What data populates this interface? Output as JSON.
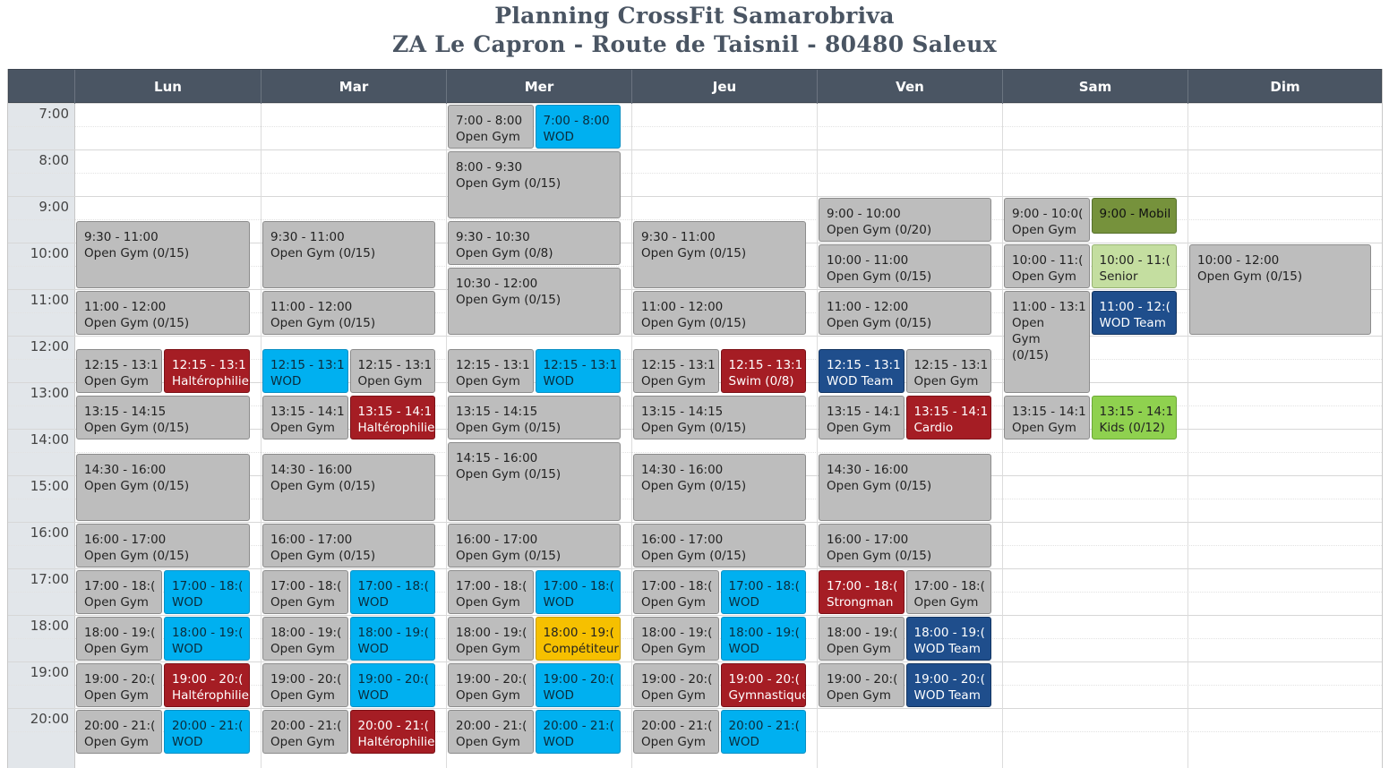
{
  "title": {
    "line1": "Planning CrossFit Samarobriva",
    "line2": "ZA Le Capron - Route de Taisnil - 80480 Saleux"
  },
  "days": [
    "Lun",
    "Mar",
    "Mer",
    "Jeu",
    "Ven",
    "Sam",
    "Dim"
  ],
  "hours": [
    "7:00",
    "8:00",
    "9:00",
    "10:00",
    "11:00",
    "12:00",
    "13:00",
    "14:00",
    "15:00",
    "16:00",
    "17:00",
    "18:00",
    "19:00",
    "20:00"
  ],
  "colors": {
    "header": "#4a5563",
    "grey": "#bdbdbd",
    "blue": "#00b0f0",
    "red": "#a51d24",
    "navy": "#1f4e8c",
    "yellow": "#f6c000",
    "olive": "#76923c",
    "light_green": "#c4dea0",
    "green": "#8fd14f"
  },
  "events": [
    {
      "day": 0,
      "start": "9:30",
      "end": "11:00",
      "time": "9:30 - 11:00",
      "name": "Open Gym (0/15)",
      "color": "grey",
      "col": 0,
      "cols": 1
    },
    {
      "day": 0,
      "start": "11:00",
      "end": "12:00",
      "time": "11:00 - 12:00",
      "name": "Open Gym (0/15)",
      "color": "grey",
      "col": 0,
      "cols": 1
    },
    {
      "day": 0,
      "start": "12:15",
      "end": "13:15",
      "time": "12:15 - 13:1",
      "name": "Open Gym",
      "color": "grey",
      "col": 0,
      "cols": 2
    },
    {
      "day": 0,
      "start": "12:15",
      "end": "13:15",
      "time": "12:15 - 13:1",
      "name": "Haltérophilie",
      "color": "red",
      "col": 1,
      "cols": 2
    },
    {
      "day": 0,
      "start": "13:15",
      "end": "14:15",
      "time": "13:15 - 14:15",
      "name": "Open Gym (0/15)",
      "color": "grey",
      "col": 0,
      "cols": 1
    },
    {
      "day": 0,
      "start": "14:30",
      "end": "16:00",
      "time": "14:30 - 16:00",
      "name": "Open Gym (0/15)",
      "color": "grey",
      "col": 0,
      "cols": 1
    },
    {
      "day": 0,
      "start": "16:00",
      "end": "17:00",
      "time": "16:00 - 17:00",
      "name": "Open Gym (0/15)",
      "color": "grey",
      "col": 0,
      "cols": 1
    },
    {
      "day": 0,
      "start": "17:00",
      "end": "18:00",
      "time": "17:00 - 18:(",
      "name": "Open Gym",
      "color": "grey",
      "col": 0,
      "cols": 2
    },
    {
      "day": 0,
      "start": "17:00",
      "end": "18:00",
      "time": "17:00 - 18:(",
      "name": "WOD",
      "color": "blue",
      "col": 1,
      "cols": 2
    },
    {
      "day": 0,
      "start": "18:00",
      "end": "19:00",
      "time": "18:00 - 19:(",
      "name": "Open Gym",
      "color": "grey",
      "col": 0,
      "cols": 2
    },
    {
      "day": 0,
      "start": "18:00",
      "end": "19:00",
      "time": "18:00 - 19:(",
      "name": "WOD",
      "color": "blue",
      "col": 1,
      "cols": 2
    },
    {
      "day": 0,
      "start": "19:00",
      "end": "20:00",
      "time": "19:00 - 20:(",
      "name": "Open Gym",
      "color": "grey",
      "col": 0,
      "cols": 2
    },
    {
      "day": 0,
      "start": "19:00",
      "end": "20:00",
      "time": "19:00 - 20:(",
      "name": "Haltérophilie",
      "color": "red",
      "col": 1,
      "cols": 2
    },
    {
      "day": 0,
      "start": "20:00",
      "end": "21:00",
      "time": "20:00 - 21:(",
      "name": "Open Gym",
      "color": "grey",
      "col": 0,
      "cols": 2
    },
    {
      "day": 0,
      "start": "20:00",
      "end": "21:00",
      "time": "20:00 - 21:(",
      "name": "WOD",
      "color": "blue",
      "col": 1,
      "cols": 2
    },
    {
      "day": 1,
      "start": "9:30",
      "end": "11:00",
      "time": "9:30 - 11:00",
      "name": "Open Gym (0/15)",
      "color": "grey",
      "col": 0,
      "cols": 1
    },
    {
      "day": 1,
      "start": "11:00",
      "end": "12:00",
      "time": "11:00 - 12:00",
      "name": "Open Gym (0/15)",
      "color": "grey",
      "col": 0,
      "cols": 1
    },
    {
      "day": 1,
      "start": "12:15",
      "end": "13:15",
      "time": "12:15 - 13:1",
      "name": "WOD",
      "color": "blue",
      "col": 0,
      "cols": 2
    },
    {
      "day": 1,
      "start": "12:15",
      "end": "13:15",
      "time": "12:15 - 13:1",
      "name": "Open Gym",
      "color": "grey",
      "col": 1,
      "cols": 2
    },
    {
      "day": 1,
      "start": "13:15",
      "end": "14:15",
      "time": "13:15 - 14:1",
      "name": "Open Gym",
      "color": "grey",
      "col": 0,
      "cols": 2
    },
    {
      "day": 1,
      "start": "13:15",
      "end": "14:15",
      "time": "13:15 - 14:1",
      "name": "Haltérophilie",
      "color": "red",
      "col": 1,
      "cols": 2
    },
    {
      "day": 1,
      "start": "14:30",
      "end": "16:00",
      "time": "14:30 - 16:00",
      "name": "Open Gym (0/15)",
      "color": "grey",
      "col": 0,
      "cols": 1
    },
    {
      "day": 1,
      "start": "16:00",
      "end": "17:00",
      "time": "16:00 - 17:00",
      "name": "Open Gym (0/15)",
      "color": "grey",
      "col": 0,
      "cols": 1
    },
    {
      "day": 1,
      "start": "17:00",
      "end": "18:00",
      "time": "17:00 - 18:(",
      "name": "Open Gym",
      "color": "grey",
      "col": 0,
      "cols": 2
    },
    {
      "day": 1,
      "start": "17:00",
      "end": "18:00",
      "time": "17:00 - 18:(",
      "name": "WOD",
      "color": "blue",
      "col": 1,
      "cols": 2
    },
    {
      "day": 1,
      "start": "18:00",
      "end": "19:00",
      "time": "18:00 - 19:(",
      "name": "Open Gym",
      "color": "grey",
      "col": 0,
      "cols": 2
    },
    {
      "day": 1,
      "start": "18:00",
      "end": "19:00",
      "time": "18:00 - 19:(",
      "name": "WOD",
      "color": "blue",
      "col": 1,
      "cols": 2
    },
    {
      "day": 1,
      "start": "19:00",
      "end": "20:00",
      "time": "19:00 - 20:(",
      "name": "Open Gym",
      "color": "grey",
      "col": 0,
      "cols": 2
    },
    {
      "day": 1,
      "start": "19:00",
      "end": "20:00",
      "time": "19:00 - 20:(",
      "name": "WOD",
      "color": "blue",
      "col": 1,
      "cols": 2
    },
    {
      "day": 1,
      "start": "20:00",
      "end": "21:00",
      "time": "20:00 - 21:(",
      "name": "Open Gym",
      "color": "grey",
      "col": 0,
      "cols": 2
    },
    {
      "day": 1,
      "start": "20:00",
      "end": "21:00",
      "time": "20:00 - 21:(",
      "name": "Haltérophilie",
      "color": "red",
      "col": 1,
      "cols": 2
    },
    {
      "day": 2,
      "start": "7:00",
      "end": "8:00",
      "time": "7:00 - 8:00",
      "name": "Open Gym",
      "color": "grey",
      "col": 0,
      "cols": 2
    },
    {
      "day": 2,
      "start": "7:00",
      "end": "8:00",
      "time": "7:00 - 8:00",
      "name": "WOD",
      "color": "blue",
      "col": 1,
      "cols": 2
    },
    {
      "day": 2,
      "start": "8:00",
      "end": "9:30",
      "time": "8:00 - 9:30",
      "name": "Open Gym (0/15)",
      "color": "grey",
      "col": 0,
      "cols": 1
    },
    {
      "day": 2,
      "start": "9:30",
      "end": "10:30",
      "time": "9:30 - 10:30",
      "name": "Open Gym (0/8)",
      "color": "grey",
      "col": 0,
      "cols": 1
    },
    {
      "day": 2,
      "start": "10:30",
      "end": "12:00",
      "time": "10:30 - 12:00",
      "name": "Open Gym (0/15)",
      "color": "grey",
      "col": 0,
      "cols": 1
    },
    {
      "day": 2,
      "start": "12:15",
      "end": "13:15",
      "time": "12:15 - 13:1",
      "name": "Open Gym",
      "color": "grey",
      "col": 0,
      "cols": 2
    },
    {
      "day": 2,
      "start": "12:15",
      "end": "13:15",
      "time": "12:15 - 13:1",
      "name": "WOD",
      "color": "blue",
      "col": 1,
      "cols": 2
    },
    {
      "day": 2,
      "start": "13:15",
      "end": "14:15",
      "time": "13:15 - 14:15",
      "name": "Open Gym (0/15)",
      "color": "grey",
      "col": 0,
      "cols": 1
    },
    {
      "day": 2,
      "start": "14:15",
      "end": "16:00",
      "time": "14:15 - 16:00",
      "name": "Open Gym (0/15)",
      "color": "grey",
      "col": 0,
      "cols": 1
    },
    {
      "day": 2,
      "start": "16:00",
      "end": "17:00",
      "time": "16:00 - 17:00",
      "name": "Open Gym (0/15)",
      "color": "grey",
      "col": 0,
      "cols": 1
    },
    {
      "day": 2,
      "start": "17:00",
      "end": "18:00",
      "time": "17:00 - 18:(",
      "name": "Open Gym",
      "color": "grey",
      "col": 0,
      "cols": 2
    },
    {
      "day": 2,
      "start": "17:00",
      "end": "18:00",
      "time": "17:00 - 18:(",
      "name": "WOD",
      "color": "blue",
      "col": 1,
      "cols": 2
    },
    {
      "day": 2,
      "start": "18:00",
      "end": "19:00",
      "time": "18:00 - 19:(",
      "name": "Open Gym",
      "color": "grey",
      "col": 0,
      "cols": 2
    },
    {
      "day": 2,
      "start": "18:00",
      "end": "19:00",
      "time": "18:00 - 19:(",
      "name": "Compétiteur",
      "color": "yellow",
      "col": 1,
      "cols": 2
    },
    {
      "day": 2,
      "start": "19:00",
      "end": "20:00",
      "time": "19:00 - 20:(",
      "name": "Open Gym",
      "color": "grey",
      "col": 0,
      "cols": 2
    },
    {
      "day": 2,
      "start": "19:00",
      "end": "20:00",
      "time": "19:00 - 20:(",
      "name": "WOD",
      "color": "blue",
      "col": 1,
      "cols": 2
    },
    {
      "day": 2,
      "start": "20:00",
      "end": "21:00",
      "time": "20:00 - 21:(",
      "name": "Open Gym",
      "color": "grey",
      "col": 0,
      "cols": 2
    },
    {
      "day": 2,
      "start": "20:00",
      "end": "21:00",
      "time": "20:00 - 21:(",
      "name": "WOD",
      "color": "blue",
      "col": 1,
      "cols": 2
    },
    {
      "day": 3,
      "start": "9:30",
      "end": "11:00",
      "time": "9:30 - 11:00",
      "name": "Open Gym (0/15)",
      "color": "grey",
      "col": 0,
      "cols": 1
    },
    {
      "day": 3,
      "start": "11:00",
      "end": "12:00",
      "time": "11:00 - 12:00",
      "name": "Open Gym (0/15)",
      "color": "grey",
      "col": 0,
      "cols": 1
    },
    {
      "day": 3,
      "start": "12:15",
      "end": "13:15",
      "time": "12:15 - 13:1",
      "name": "Open Gym",
      "color": "grey",
      "col": 0,
      "cols": 2
    },
    {
      "day": 3,
      "start": "12:15",
      "end": "13:15",
      "time": "12:15 - 13:1",
      "name": "Swim (0/8)",
      "color": "red",
      "col": 1,
      "cols": 2
    },
    {
      "day": 3,
      "start": "13:15",
      "end": "14:15",
      "time": "13:15 - 14:15",
      "name": "Open Gym (0/15)",
      "color": "grey",
      "col": 0,
      "cols": 1
    },
    {
      "day": 3,
      "start": "14:30",
      "end": "16:00",
      "time": "14:30 - 16:00",
      "name": "Open Gym (0/15)",
      "color": "grey",
      "col": 0,
      "cols": 1
    },
    {
      "day": 3,
      "start": "16:00",
      "end": "17:00",
      "time": "16:00 - 17:00",
      "name": "Open Gym (0/15)",
      "color": "grey",
      "col": 0,
      "cols": 1
    },
    {
      "day": 3,
      "start": "17:00",
      "end": "18:00",
      "time": "17:00 - 18:(",
      "name": "Open Gym",
      "color": "grey",
      "col": 0,
      "cols": 2
    },
    {
      "day": 3,
      "start": "17:00",
      "end": "18:00",
      "time": "17:00 - 18:(",
      "name": "WOD",
      "color": "blue",
      "col": 1,
      "cols": 2
    },
    {
      "day": 3,
      "start": "18:00",
      "end": "19:00",
      "time": "18:00 - 19:(",
      "name": "Open Gym",
      "color": "grey",
      "col": 0,
      "cols": 2
    },
    {
      "day": 3,
      "start": "18:00",
      "end": "19:00",
      "time": "18:00 - 19:(",
      "name": "WOD",
      "color": "blue",
      "col": 1,
      "cols": 2
    },
    {
      "day": 3,
      "start": "19:00",
      "end": "20:00",
      "time": "19:00 - 20:(",
      "name": "Open Gym",
      "color": "grey",
      "col": 0,
      "cols": 2
    },
    {
      "day": 3,
      "start": "19:00",
      "end": "20:00",
      "time": "19:00 - 20:(",
      "name": "Gymnastique",
      "color": "red",
      "col": 1,
      "cols": 2
    },
    {
      "day": 3,
      "start": "20:00",
      "end": "21:00",
      "time": "20:00 - 21:(",
      "name": "Open Gym",
      "color": "grey",
      "col": 0,
      "cols": 2
    },
    {
      "day": 3,
      "start": "20:00",
      "end": "21:00",
      "time": "20:00 - 21:(",
      "name": "WOD",
      "color": "blue",
      "col": 1,
      "cols": 2
    },
    {
      "day": 4,
      "start": "9:00",
      "end": "10:00",
      "time": "9:00 - 10:00",
      "name": "Open Gym (0/20)",
      "color": "grey",
      "col": 0,
      "cols": 1
    },
    {
      "day": 4,
      "start": "10:00",
      "end": "11:00",
      "time": "10:00 - 11:00",
      "name": "Open Gym (0/15)",
      "color": "grey",
      "col": 0,
      "cols": 1
    },
    {
      "day": 4,
      "start": "11:00",
      "end": "12:00",
      "time": "11:00 - 12:00",
      "name": "Open Gym (0/15)",
      "color": "grey",
      "col": 0,
      "cols": 1
    },
    {
      "day": 4,
      "start": "12:15",
      "end": "13:15",
      "time": "12:15 - 13:1",
      "name": "WOD Team",
      "color": "navy",
      "col": 0,
      "cols": 2
    },
    {
      "day": 4,
      "start": "12:15",
      "end": "13:15",
      "time": "12:15 - 13:1",
      "name": "Open Gym",
      "color": "grey",
      "col": 1,
      "cols": 2
    },
    {
      "day": 4,
      "start": "13:15",
      "end": "14:15",
      "time": "13:15 - 14:1",
      "name": "Open Gym",
      "color": "grey",
      "col": 0,
      "cols": 2
    },
    {
      "day": 4,
      "start": "13:15",
      "end": "14:15",
      "time": "13:15 - 14:1",
      "name": "Cardio",
      "color": "red",
      "col": 1,
      "cols": 2
    },
    {
      "day": 4,
      "start": "14:30",
      "end": "16:00",
      "time": "14:30 - 16:00",
      "name": "Open Gym (0/15)",
      "color": "grey",
      "col": 0,
      "cols": 1
    },
    {
      "day": 4,
      "start": "16:00",
      "end": "17:00",
      "time": "16:00 - 17:00",
      "name": "Open Gym (0/15)",
      "color": "grey",
      "col": 0,
      "cols": 1
    },
    {
      "day": 4,
      "start": "17:00",
      "end": "18:00",
      "time": "17:00 - 18:(",
      "name": "Strongman",
      "color": "red",
      "col": 0,
      "cols": 2
    },
    {
      "day": 4,
      "start": "17:00",
      "end": "18:00",
      "time": "17:00 - 18:(",
      "name": "Open Gym",
      "color": "grey",
      "col": 1,
      "cols": 2
    },
    {
      "day": 4,
      "start": "18:00",
      "end": "19:00",
      "time": "18:00 - 19:(",
      "name": "Open Gym",
      "color": "grey",
      "col": 0,
      "cols": 2
    },
    {
      "day": 4,
      "start": "18:00",
      "end": "19:00",
      "time": "18:00 - 19:(",
      "name": "WOD Team",
      "color": "navy",
      "col": 1,
      "cols": 2
    },
    {
      "day": 4,
      "start": "19:00",
      "end": "20:00",
      "time": "19:00 - 20:(",
      "name": "Open Gym",
      "color": "grey",
      "col": 0,
      "cols": 2
    },
    {
      "day": 4,
      "start": "19:00",
      "end": "20:00",
      "time": "19:00 - 20:(",
      "name": "WOD Team",
      "color": "navy",
      "col": 1,
      "cols": 2
    },
    {
      "day": 5,
      "start": "9:00",
      "end": "10:00",
      "time": "9:00 - 10:0(",
      "name": "Open Gym",
      "color": "grey",
      "col": 0,
      "cols": 2
    },
    {
      "day": 5,
      "start": "9:00",
      "end": "9:50",
      "time": "9:00 - Mobil",
      "name": "",
      "color": "olive",
      "col": 1,
      "cols": 2
    },
    {
      "day": 5,
      "start": "10:00",
      "end": "11:00",
      "time": "10:00 - 11:(",
      "name": "Open Gym",
      "color": "grey",
      "col": 0,
      "cols": 2
    },
    {
      "day": 5,
      "start": "10:00",
      "end": "11:00",
      "time": "10:00 - 11:(",
      "name": "Senior",
      "color": "lgreen",
      "col": 1,
      "cols": 2
    },
    {
      "day": 5,
      "start": "11:00",
      "end": "13:15",
      "time": "11:00 - 13:1",
      "name": "Open Gym (0/15)",
      "color": "grey",
      "col": 0,
      "cols": 2,
      "wrap": true
    },
    {
      "day": 5,
      "start": "11:00",
      "end": "12:00",
      "time": "11:00 - 12:(",
      "name": "WOD Team",
      "color": "navy",
      "col": 1,
      "cols": 2
    },
    {
      "day": 5,
      "start": "13:15",
      "end": "14:15",
      "time": "13:15 - 14:1",
      "name": "Open Gym",
      "color": "grey",
      "col": 0,
      "cols": 2
    },
    {
      "day": 5,
      "start": "13:15",
      "end": "14:15",
      "time": "13:15 - 14:1",
      "name": "Kids (0/12)",
      "color": "green",
      "col": 1,
      "cols": 2
    },
    {
      "day": 6,
      "start": "10:00",
      "end": "12:00",
      "time": "10:00 - 12:00",
      "name": "Open Gym (0/15)",
      "color": "grey",
      "col": 0,
      "cols": 1
    }
  ]
}
